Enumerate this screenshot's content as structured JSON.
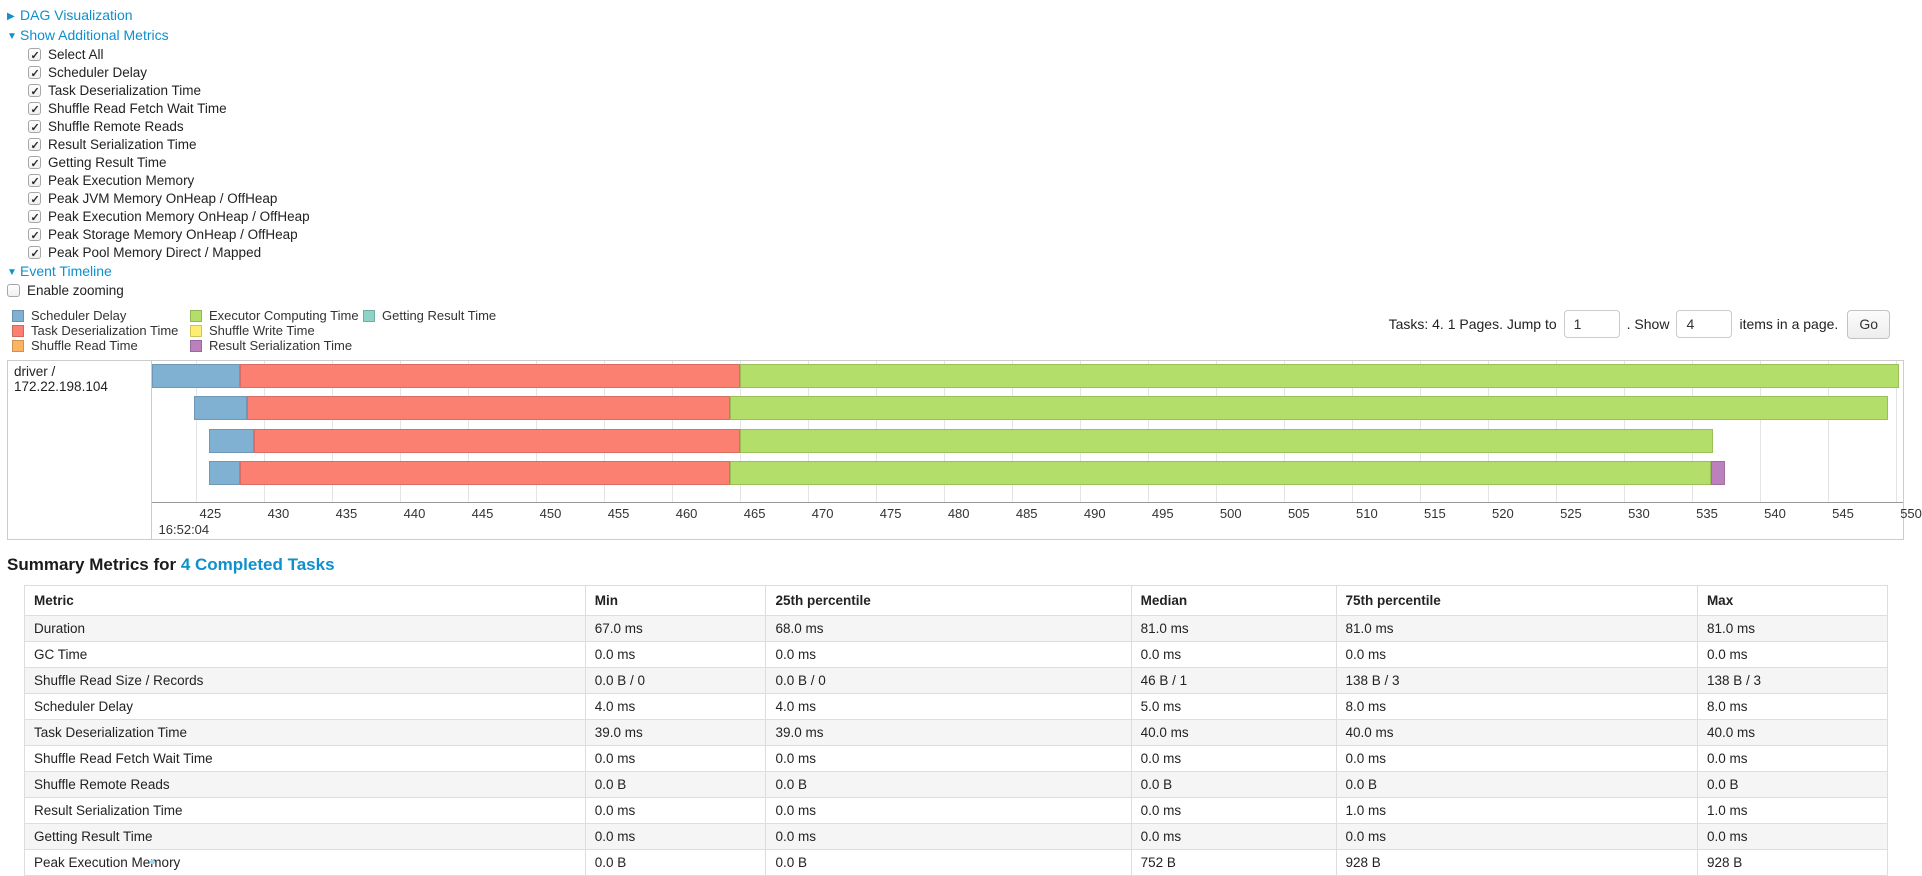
{
  "sections": {
    "dag": {
      "label": "DAG Visualization",
      "state": "collapsed"
    },
    "additional_metrics": {
      "label": "Show Additional Metrics",
      "state": "expanded"
    },
    "event_timeline": {
      "label": "Event Timeline",
      "state": "expanded"
    }
  },
  "metric_checkboxes": [
    {
      "label": "Select All",
      "checked": true
    },
    {
      "label": "Scheduler Delay",
      "checked": true
    },
    {
      "label": "Task Deserialization Time",
      "checked": true
    },
    {
      "label": "Shuffle Read Fetch Wait Time",
      "checked": true
    },
    {
      "label": "Shuffle Remote Reads",
      "checked": true
    },
    {
      "label": "Result Serialization Time",
      "checked": true
    },
    {
      "label": "Getting Result Time",
      "checked": true
    },
    {
      "label": "Peak Execution Memory",
      "checked": true
    },
    {
      "label": "Peak JVM Memory OnHeap / OffHeap",
      "checked": true
    },
    {
      "label": "Peak Execution Memory OnHeap / OffHeap",
      "checked": true
    },
    {
      "label": "Peak Storage Memory OnHeap / OffHeap",
      "checked": true
    },
    {
      "label": "Peak Pool Memory Direct / Mapped",
      "checked": true
    }
  ],
  "enable_zooming": {
    "label": "Enable zooming",
    "checked": false
  },
  "colors": {
    "scheduler_delay": "#80B1D3",
    "task_deserialization": "#FB8072",
    "shuffle_read": "#FDB462",
    "executor_computing": "#B3DE69",
    "shuffle_write": "#FFED6F",
    "result_serialization": "#BC80BD",
    "getting_result": "#8DD3C7",
    "link_blue": "#0e8fce"
  },
  "legend_columns": [
    [
      {
        "label": "Scheduler Delay",
        "metric": "scheduler_delay"
      },
      {
        "label": "Task Deserialization Time",
        "metric": "task_deserialization"
      },
      {
        "label": "Shuffle Read Time",
        "metric": "shuffle_read"
      }
    ],
    [
      {
        "label": "Executor Computing Time",
        "metric": "executor_computing"
      },
      {
        "label": "Shuffle Write Time",
        "metric": "shuffle_write"
      },
      {
        "label": "Result Serialization Time",
        "metric": "result_serialization"
      }
    ],
    [
      {
        "label": "Getting Result Time",
        "metric": "getting_result"
      }
    ]
  ],
  "pagination": {
    "summary_text": "Tasks: 4. 1 Pages. Jump to",
    "jump_value": "1",
    "mid_text": ". Show",
    "show_value": "4",
    "suffix_text": "items in a page.",
    "go_label": "Go"
  },
  "chart_data": {
    "type": "gantt-timeline",
    "executor_label": "driver / 172.22.198.104",
    "axis": {
      "unit": "milliseconds within second 16:52:04",
      "start": 421.8,
      "end": 550.5,
      "tick_step": 5,
      "ticks": [
        425,
        430,
        435,
        440,
        445,
        450,
        455,
        460,
        465,
        470,
        475,
        480,
        485,
        490,
        495,
        500,
        505,
        510,
        515,
        520,
        525,
        530,
        535,
        540,
        545,
        550
      ],
      "time_label": "16:52:04",
      "grid": true
    },
    "rows": [
      {
        "segments": [
          {
            "metric": "scheduler_delay",
            "from": 421.8,
            "to": 428.3
          },
          {
            "metric": "task_deserialization",
            "from": 428.3,
            "to": 465.0
          },
          {
            "metric": "executor_computing",
            "from": 465.0,
            "to": 550.2
          }
        ]
      },
      {
        "segments": [
          {
            "metric": "scheduler_delay",
            "from": 424.9,
            "to": 428.8
          },
          {
            "metric": "task_deserialization",
            "from": 428.8,
            "to": 464.3
          },
          {
            "metric": "executor_computing",
            "from": 464.3,
            "to": 549.4
          }
        ]
      },
      {
        "segments": [
          {
            "metric": "scheduler_delay",
            "from": 426.0,
            "to": 429.3
          },
          {
            "metric": "task_deserialization",
            "from": 429.3,
            "to": 465.0
          },
          {
            "metric": "executor_computing",
            "from": 465.0,
            "to": 536.5
          }
        ]
      },
      {
        "segments": [
          {
            "metric": "scheduler_delay",
            "from": 426.0,
            "to": 428.3
          },
          {
            "metric": "task_deserialization",
            "from": 428.3,
            "to": 464.3
          },
          {
            "metric": "executor_computing",
            "from": 464.3,
            "to": 536.4
          },
          {
            "metric": "result_serialization",
            "from": 536.4,
            "to": 537.4
          }
        ]
      }
    ]
  },
  "summary": {
    "title_prefix": "Summary Metrics for ",
    "title_link": "4 Completed Tasks",
    "columns": [
      {
        "label": "Metric",
        "width": "30.1%"
      },
      {
        "label": "Min",
        "width": "9.7%"
      },
      {
        "label": "25th percentile",
        "width": "19.6%"
      },
      {
        "label": "Median",
        "width": "11.0%"
      },
      {
        "label": "75th percentile",
        "width": "19.4%"
      },
      {
        "label": "Max",
        "width": "10.2%"
      }
    ],
    "rows": [
      {
        "metric": "Duration",
        "values": [
          "67.0 ms",
          "68.0 ms",
          "81.0 ms",
          "81.0 ms",
          "81.0 ms"
        ]
      },
      {
        "metric": "GC Time",
        "values": [
          "0.0 ms",
          "0.0 ms",
          "0.0 ms",
          "0.0 ms",
          "0.0 ms"
        ]
      },
      {
        "metric": "Shuffle Read Size / Records",
        "values": [
          "0.0 B / 0",
          "0.0 B / 0",
          "46 B / 1",
          "138 B / 3",
          "138 B / 3"
        ]
      },
      {
        "metric": "Scheduler Delay",
        "values": [
          "4.0 ms",
          "4.0 ms",
          "5.0 ms",
          "8.0 ms",
          "8.0 ms"
        ]
      },
      {
        "metric": "Task Deserialization Time",
        "values": [
          "39.0 ms",
          "39.0 ms",
          "40.0 ms",
          "40.0 ms",
          "40.0 ms"
        ]
      },
      {
        "metric": "Shuffle Read Fetch Wait Time",
        "values": [
          "0.0 ms",
          "0.0 ms",
          "0.0 ms",
          "0.0 ms",
          "0.0 ms"
        ]
      },
      {
        "metric": "Shuffle Remote Reads",
        "values": [
          "0.0 B",
          "0.0 B",
          "0.0 B",
          "0.0 B",
          "0.0 B"
        ]
      },
      {
        "metric": "Result Serialization Time",
        "values": [
          "0.0 ms",
          "0.0 ms",
          "0.0 ms",
          "1.0 ms",
          "1.0 ms"
        ]
      },
      {
        "metric": "Getting Result Time",
        "values": [
          "0.0 ms",
          "0.0 ms",
          "0.0 ms",
          "0.0 ms",
          "0.0 ms"
        ]
      },
      {
        "metric": "Peak Execution Memory",
        "values": [
          "0.0 B",
          "0.0 B",
          "752 B",
          "928 B",
          "928 B"
        ]
      }
    ]
  }
}
